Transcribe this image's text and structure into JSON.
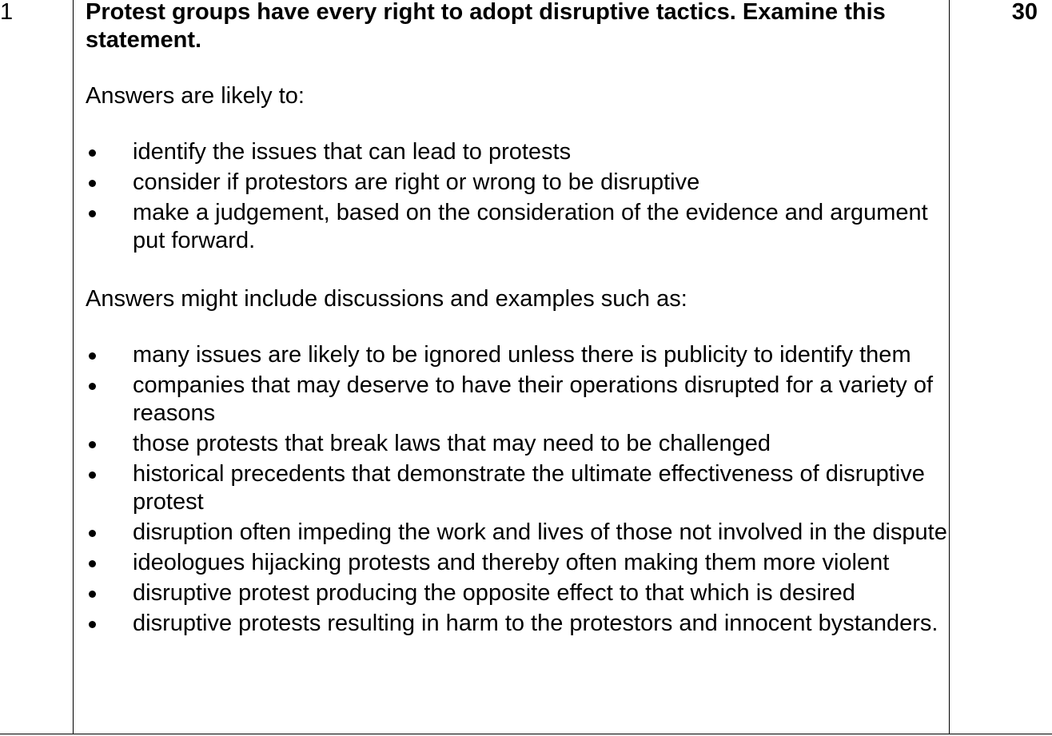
{
  "question_number": "1",
  "marks": "30",
  "question": "Protest groups have every right to adopt disruptive tactics. Examine this statement.",
  "intro_likely": "Answers are likely to:",
  "likely_items": [
    "identify the issues that can lead to protests",
    "consider if protestors are right or wrong to be disruptive",
    "make a judgement, based on the consideration of the evidence and argument put forward."
  ],
  "intro_might": "Answers might include discussions and examples such as:",
  "might_items": [
    "many issues are likely to be ignored unless there is publicity to identify them",
    "companies that may deserve to have their operations disrupted for a variety of reasons",
    "those protests that break laws that may need to be challenged",
    "historical precedents that demonstrate the ultimate effectiveness of disruptive protest",
    "disruption often impeding the work and lives of those not involved in the dispute",
    "ideologues hijacking protests and thereby often making them more violent",
    "disruptive protest producing the opposite effect to that which is desired",
    "disruptive protests resulting in harm to the protestors and innocent bystanders."
  ]
}
